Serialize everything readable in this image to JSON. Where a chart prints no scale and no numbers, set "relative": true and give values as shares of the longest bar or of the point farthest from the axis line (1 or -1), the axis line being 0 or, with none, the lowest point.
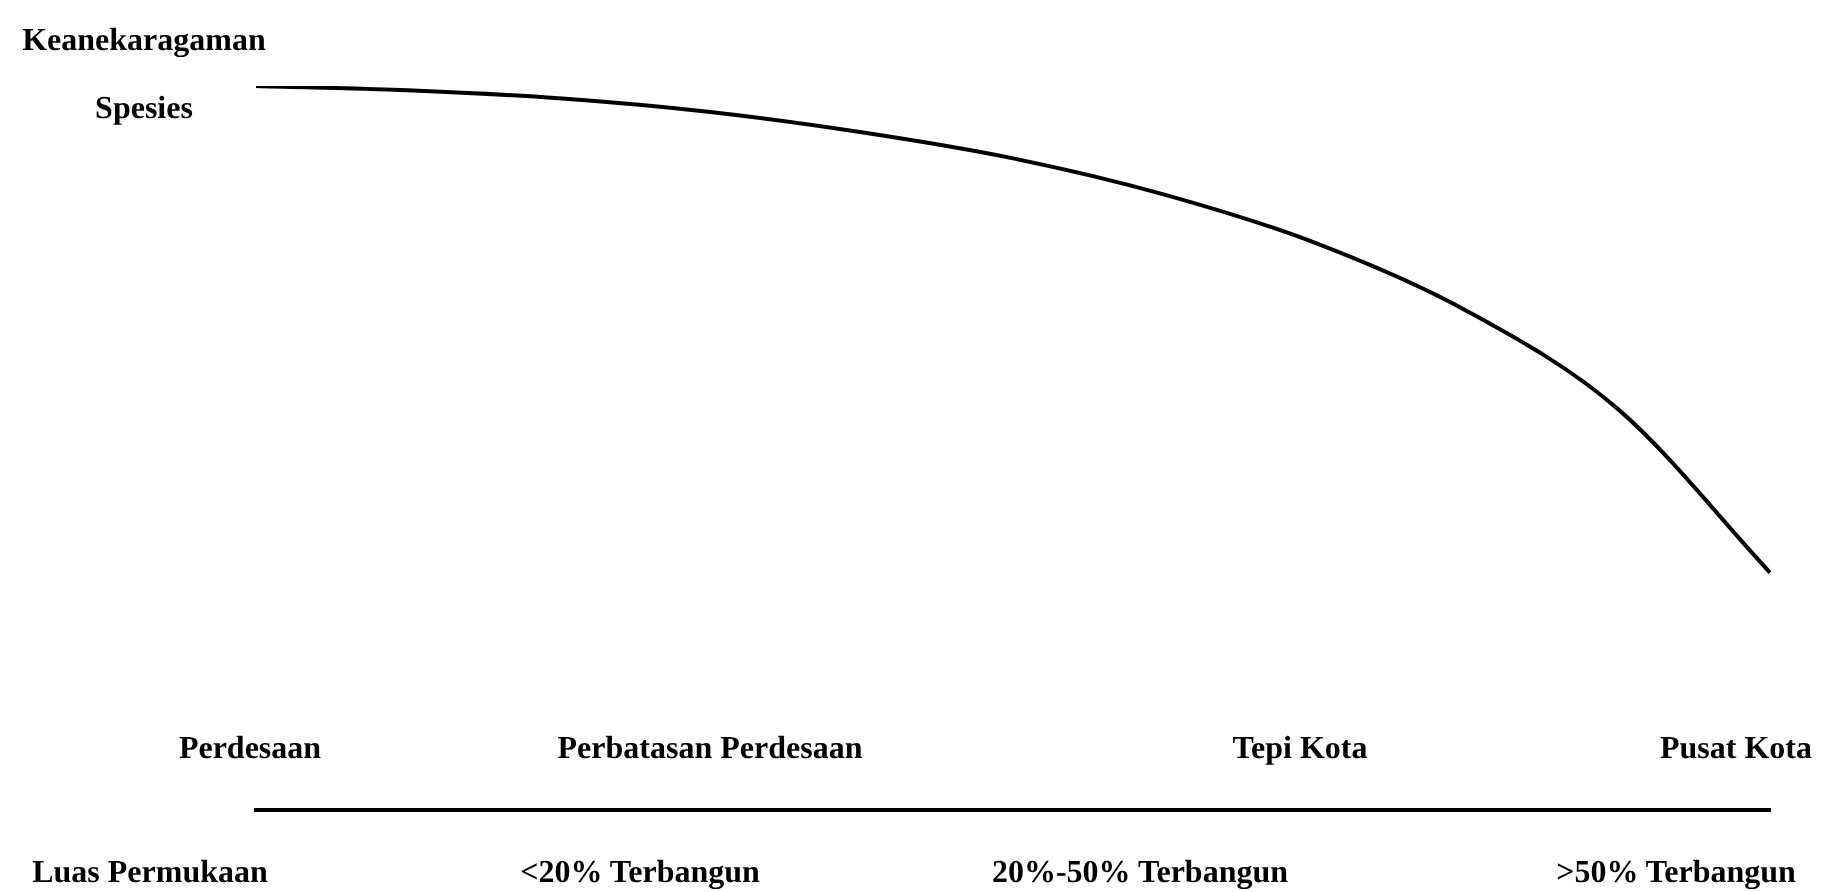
{
  "chart_data": {
    "type": "line",
    "relative": true,
    "ylabel": "Keanekaragaman Spesies",
    "categories": [
      null,
      null,
      null,
      null,
      null,
      null,
      null,
      null,
      null,
      null,
      null
    ],
    "values": [
      1.0,
      0.994,
      0.983,
      0.964,
      0.936,
      0.9,
      0.85,
      0.783,
      0.689,
      0.553,
      0.328
    ],
    "color": "#000000",
    "marker": "none",
    "line_style": "solid",
    "grid": false,
    "legend": false,
    "tick_labels": false,
    "annotations": [
      "Perdesaan",
      "Perbatasan Perdesaan",
      "Tepi Kota",
      "Pusat Kota",
      "Luas Permukaan",
      "<20% Terbangun",
      "20%-50% Terbangun",
      ">50% Terbangun"
    ]
  }
}
